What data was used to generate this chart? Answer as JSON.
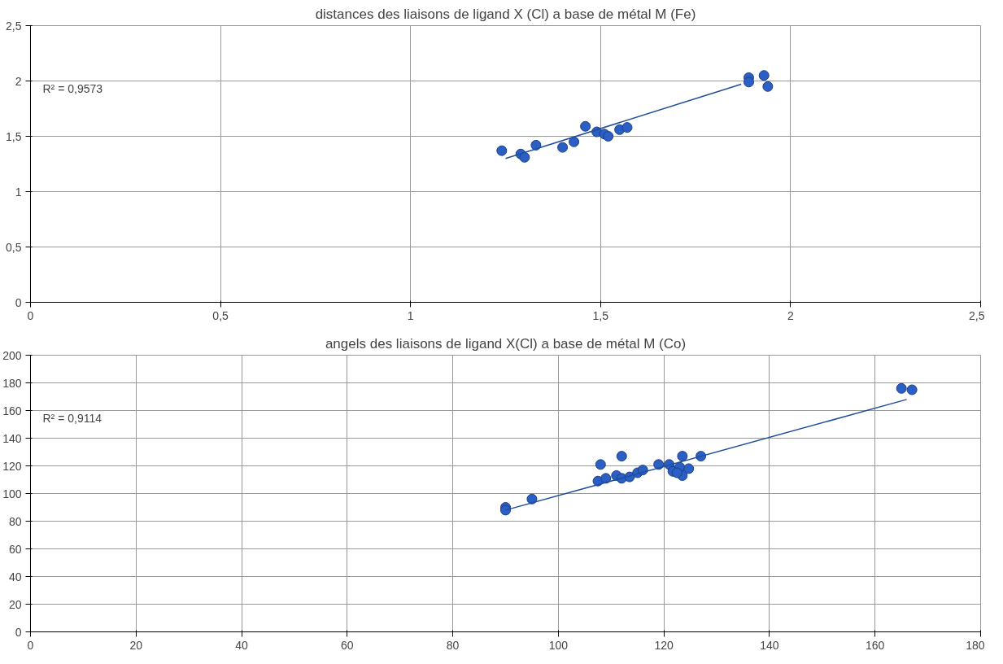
{
  "chart_data": [
    {
      "type": "scatter",
      "title": "distances des liaisons de ligand X (Cl) a base de métal M (Fe)",
      "annotations": [
        "R² = 0,9573"
      ],
      "grid": true,
      "xlim": [
        0,
        2.5
      ],
      "ylim": [
        0,
        2.5
      ],
      "xticks": [
        0,
        {
          "value": 0.5,
          "label": "0,5"
        },
        1,
        {
          "value": 1.5,
          "label": "1,5"
        },
        2,
        {
          "value": 2.5,
          "label": "2,5"
        }
      ],
      "yticks": [
        0,
        {
          "value": 0.5,
          "label": "0,5"
        },
        1,
        {
          "value": 1.5,
          "label": "1,5"
        },
        2,
        {
          "value": 2.5,
          "label": "2,5"
        }
      ],
      "series": [
        {
          "marker": "circle",
          "color": "#2b5fc4",
          "x": [
            1.24,
            1.29,
            1.3,
            1.33,
            1.4,
            1.43,
            1.46,
            1.49,
            1.51,
            1.52,
            1.55,
            1.57,
            1.89,
            1.89,
            1.93,
            1.94
          ],
          "values": [
            1.37,
            1.34,
            1.31,
            1.42,
            1.4,
            1.45,
            1.59,
            1.54,
            1.52,
            1.5,
            1.56,
            1.58,
            2.03,
            1.99,
            2.05,
            1.95
          ]
        },
        {
          "type": "line",
          "marker": "none",
          "color": "#1f4e9c",
          "x": [
            1.25,
            1.87
          ],
          "values": [
            1.3,
            1.97
          ]
        }
      ]
    },
    {
      "type": "scatter",
      "title": "angels des liaisons de ligand X(Cl) a base de métal M (Co)",
      "annotations": [
        "R² = 0,9114"
      ],
      "grid": true,
      "xlim": [
        0,
        180
      ],
      "ylim": [
        0,
        200
      ],
      "xticks": [
        0,
        20,
        40,
        60,
        80,
        100,
        120,
        140,
        160,
        180
      ],
      "yticks": [
        0,
        20,
        40,
        60,
        80,
        100,
        120,
        140,
        160,
        180,
        200
      ],
      "series": [
        {
          "marker": "circle",
          "color": "#2b5fc4",
          "x": [
            90,
            90,
            95,
            108,
            112,
            107.5,
            109,
            111,
            112,
            113.5,
            115,
            116,
            119,
            121,
            121.7,
            123.5,
            123,
            124.7,
            123.5,
            122.5,
            127,
            165,
            167
          ],
          "values": [
            90,
            88,
            96,
            121,
            127,
            109,
            111,
            113,
            111,
            112,
            115,
            117,
            121,
            121,
            116,
            127,
            119,
            118,
            113,
            115,
            127,
            176,
            175
          ]
        },
        {
          "type": "line",
          "marker": "none",
          "color": "#1f4e9c",
          "x": [
            90,
            166
          ],
          "values": [
            88,
            168
          ]
        }
      ]
    }
  ]
}
